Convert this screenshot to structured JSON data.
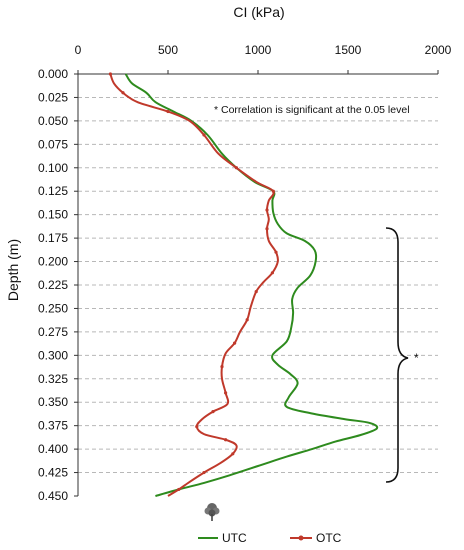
{
  "chart_data": {
    "type": "line",
    "orientation": "depth-profile",
    "title": "",
    "xlabel": "CI (kPa)",
    "ylabel": "Depth (m)",
    "xlim": [
      0,
      2000
    ],
    "ylim": [
      0,
      0.45
    ],
    "x_ticks": [
      "0",
      "500",
      "1000",
      "1500",
      "2000"
    ],
    "y_ticks": [
      "0.000",
      "0.025",
      "0.050",
      "0.075",
      "0.100",
      "0.125",
      "0.150",
      "0.175",
      "0.200",
      "0.225",
      "0.250",
      "0.275",
      "0.300",
      "0.325",
      "0.350",
      "0.375",
      "0.400",
      "0.425",
      "0.450"
    ],
    "grid": "horizontal-dashed",
    "legend_position": "bottom",
    "annotation": "* Correlation is significant at the 0.05 level",
    "bracket_label": "*",
    "bracket_range": [
      0.165,
      0.435
    ],
    "series": [
      {
        "name": "UTC",
        "color": "#2e8b1e",
        "points": [
          [
            265,
            0.0
          ],
          [
            300,
            0.01
          ],
          [
            380,
            0.02
          ],
          [
            430,
            0.03
          ],
          [
            530,
            0.04
          ],
          [
            630,
            0.05
          ],
          [
            720,
            0.065
          ],
          [
            800,
            0.085
          ],
          [
            880,
            0.1
          ],
          [
            980,
            0.115
          ],
          [
            1085,
            0.125
          ],
          [
            1080,
            0.135
          ],
          [
            1085,
            0.148
          ],
          [
            1110,
            0.16
          ],
          [
            1160,
            0.17
          ],
          [
            1260,
            0.178
          ],
          [
            1315,
            0.188
          ],
          [
            1320,
            0.2
          ],
          [
            1290,
            0.215
          ],
          [
            1220,
            0.228
          ],
          [
            1190,
            0.24
          ],
          [
            1195,
            0.255
          ],
          [
            1185,
            0.27
          ],
          [
            1160,
            0.285
          ],
          [
            1080,
            0.3
          ],
          [
            1110,
            0.31
          ],
          [
            1180,
            0.32
          ],
          [
            1220,
            0.33
          ],
          [
            1170,
            0.345
          ],
          [
            1160,
            0.355
          ],
          [
            1300,
            0.362
          ],
          [
            1480,
            0.368
          ],
          [
            1620,
            0.372
          ],
          [
            1660,
            0.378
          ],
          [
            1570,
            0.385
          ],
          [
            1430,
            0.392
          ],
          [
            1300,
            0.4
          ],
          [
            1160,
            0.408
          ],
          [
            1000,
            0.418
          ],
          [
            840,
            0.428
          ],
          [
            700,
            0.436
          ],
          [
            560,
            0.443
          ],
          [
            430,
            0.45
          ]
        ]
      },
      {
        "name": "OTC",
        "color": "#c0392b",
        "points": [
          [
            180,
            0.0
          ],
          [
            200,
            0.01
          ],
          [
            250,
            0.02
          ],
          [
            330,
            0.03
          ],
          [
            500,
            0.04
          ],
          [
            620,
            0.05
          ],
          [
            700,
            0.065
          ],
          [
            780,
            0.085
          ],
          [
            880,
            0.1
          ],
          [
            990,
            0.115
          ],
          [
            1085,
            0.125
          ],
          [
            1060,
            0.135
          ],
          [
            1050,
            0.145
          ],
          [
            1060,
            0.155
          ],
          [
            1050,
            0.165
          ],
          [
            1060,
            0.178
          ],
          [
            1100,
            0.19
          ],
          [
            1110,
            0.2
          ],
          [
            1080,
            0.212
          ],
          [
            1030,
            0.222
          ],
          [
            990,
            0.232
          ],
          [
            960,
            0.248
          ],
          [
            940,
            0.262
          ],
          [
            900,
            0.275
          ],
          [
            870,
            0.287
          ],
          [
            820,
            0.298
          ],
          [
            800,
            0.312
          ],
          [
            800,
            0.325
          ],
          [
            820,
            0.34
          ],
          [
            830,
            0.352
          ],
          [
            750,
            0.36
          ],
          [
            690,
            0.368
          ],
          [
            660,
            0.376
          ],
          [
            700,
            0.384
          ],
          [
            820,
            0.39
          ],
          [
            880,
            0.396
          ],
          [
            860,
            0.405
          ],
          [
            790,
            0.415
          ],
          [
            700,
            0.425
          ],
          [
            620,
            0.435
          ],
          [
            560,
            0.443
          ],
          [
            500,
            0.45
          ]
        ]
      }
    ]
  },
  "legend_icon": "tree-icon"
}
